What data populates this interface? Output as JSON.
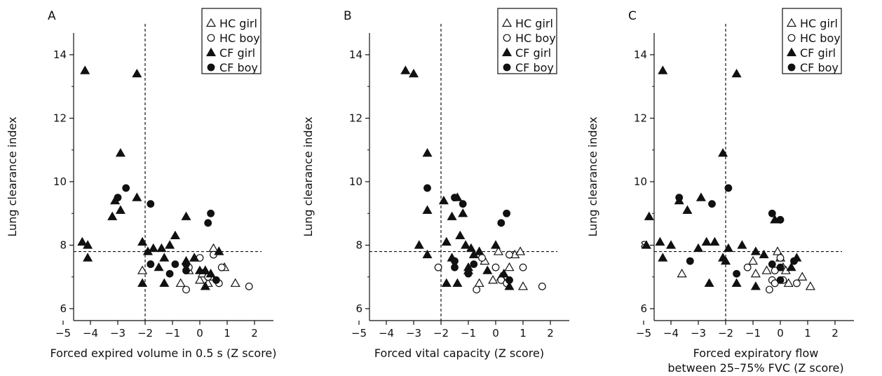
{
  "chart_data": [
    {
      "type": "scatter",
      "panel_label": "A",
      "xlabel": "Forced expired volume in 0.5 s (Z score)",
      "ylabel": "Lung clearance index",
      "xlim": [
        -5.5,
        2.5
      ],
      "ylim": [
        5.6,
        14.6
      ],
      "xticks": [
        -5,
        -4,
        -3,
        -2,
        -1,
        0,
        1,
        2
      ],
      "yticks": [
        6,
        8,
        10,
        12,
        14
      ],
      "reference_lines": {
        "x": -2,
        "y": 7.8
      },
      "grid": false,
      "legend_position": "top-right",
      "series": [
        {
          "name": "HC girl",
          "marker": "triangle-open",
          "points": [
            [
              -2.1,
              7.2
            ],
            [
              -0.7,
              6.8
            ],
            [
              -0.4,
              7.2
            ],
            [
              -0.2,
              7.6
            ],
            [
              0.0,
              6.9
            ],
            [
              0.1,
              7.1
            ],
            [
              0.2,
              7.2
            ],
            [
              0.3,
              6.8
            ],
            [
              0.4,
              7.0
            ],
            [
              0.5,
              7.9
            ],
            [
              0.7,
              7.8
            ],
            [
              0.9,
              7.3
            ],
            [
              1.3,
              6.8
            ]
          ]
        },
        {
          "name": "HC boy",
          "marker": "circle-open",
          "points": [
            [
              -1.8,
              7.4
            ],
            [
              -0.5,
              6.6
            ],
            [
              -0.4,
              7.3
            ],
            [
              0.0,
              7.6
            ],
            [
              0.3,
              7.0
            ],
            [
              0.5,
              7.7
            ],
            [
              0.7,
              6.8
            ],
            [
              0.8,
              7.3
            ],
            [
              1.8,
              6.7
            ]
          ]
        },
        {
          "name": "CF girl",
          "marker": "triangle-filled",
          "points": [
            [
              -4.2,
              13.5
            ],
            [
              -2.3,
              13.4
            ],
            [
              -2.9,
              10.9
            ],
            [
              -3.1,
              9.4
            ],
            [
              -2.9,
              9.1
            ],
            [
              -3.2,
              8.9
            ],
            [
              -2.3,
              9.5
            ],
            [
              -4.3,
              8.1
            ],
            [
              -4.1,
              8.0
            ],
            [
              -4.1,
              7.6
            ],
            [
              -2.1,
              8.1
            ],
            [
              -1.7,
              7.9
            ],
            [
              -1.4,
              7.9
            ],
            [
              -1.1,
              8.0
            ],
            [
              -0.9,
              8.3
            ],
            [
              -1.3,
              7.6
            ],
            [
              -1.9,
              7.8
            ],
            [
              -1.5,
              7.3
            ],
            [
              -1.3,
              6.8
            ],
            [
              -2.1,
              6.8
            ],
            [
              -0.5,
              8.9
            ],
            [
              -0.5,
              7.5
            ],
            [
              -0.2,
              7.6
            ],
            [
              0.0,
              7.2
            ],
            [
              0.2,
              7.2
            ],
            [
              0.2,
              6.7
            ],
            [
              0.4,
              7.1
            ],
            [
              0.7,
              7.8
            ]
          ]
        },
        {
          "name": "CF boy",
          "marker": "circle-filled",
          "points": [
            [
              -2.7,
              9.8
            ],
            [
              -3.0,
              9.5
            ],
            [
              -1.8,
              9.3
            ],
            [
              -1.8,
              7.4
            ],
            [
              -1.1,
              7.1
            ],
            [
              -0.9,
              7.4
            ],
            [
              -0.5,
              7.4
            ],
            [
              -0.5,
              7.2
            ],
            [
              0.3,
              8.7
            ],
            [
              0.4,
              9.0
            ],
            [
              0.6,
              6.9
            ]
          ]
        }
      ]
    },
    {
      "type": "scatter",
      "panel_label": "B",
      "xlabel": "Forced vital capacity (Z score)",
      "ylabel": "Lung clearance index",
      "xlim": [
        -5.5,
        2.5
      ],
      "ylim": [
        5.6,
        14.6
      ],
      "xticks": [
        -5,
        -4,
        -3,
        -2,
        -1,
        0,
        1,
        2
      ],
      "yticks": [
        6,
        8,
        10,
        12,
        14
      ],
      "reference_lines": {
        "x": -2,
        "y": 7.8
      },
      "grid": false,
      "legend_position": "top-right",
      "series": [
        {
          "name": "HC girl",
          "marker": "triangle-open",
          "points": [
            [
              -1.0,
              7.2
            ],
            [
              -0.6,
              6.8
            ],
            [
              -0.4,
              7.5
            ],
            [
              -0.1,
              6.9
            ],
            [
              0.1,
              7.8
            ],
            [
              0.2,
              7.0
            ],
            [
              0.5,
              7.3
            ],
            [
              0.7,
              7.7
            ],
            [
              0.9,
              7.8
            ],
            [
              1.0,
              6.7
            ]
          ]
        },
        {
          "name": "HC boy",
          "marker": "circle-open",
          "points": [
            [
              -2.1,
              7.3
            ],
            [
              -0.7,
              6.6
            ],
            [
              -0.5,
              7.6
            ],
            [
              0.0,
              7.3
            ],
            [
              0.2,
              6.9
            ],
            [
              0.4,
              6.8
            ],
            [
              0.5,
              7.7
            ],
            [
              1.0,
              7.3
            ],
            [
              1.7,
              6.7
            ]
          ]
        },
        {
          "name": "CF girl",
          "marker": "triangle-filled",
          "points": [
            [
              -3.3,
              13.5
            ],
            [
              -3.0,
              13.4
            ],
            [
              -2.5,
              10.9
            ],
            [
              -1.9,
              9.4
            ],
            [
              -2.5,
              9.1
            ],
            [
              -1.4,
              9.5
            ],
            [
              -1.2,
              9.0
            ],
            [
              -1.6,
              8.9
            ],
            [
              -2.8,
              8.0
            ],
            [
              -2.5,
              7.7
            ],
            [
              -1.8,
              8.1
            ],
            [
              -1.3,
              8.3
            ],
            [
              -1.1,
              8.0
            ],
            [
              -0.9,
              7.9
            ],
            [
              -0.6,
              7.8
            ],
            [
              -1.6,
              7.6
            ],
            [
              -1.0,
              7.3
            ],
            [
              -1.8,
              6.8
            ],
            [
              -1.4,
              6.8
            ],
            [
              -0.8,
              7.7
            ],
            [
              -0.3,
              7.2
            ],
            [
              0.3,
              7.1
            ],
            [
              0.5,
              6.7
            ],
            [
              0.0,
              8.0
            ]
          ]
        },
        {
          "name": "CF boy",
          "marker": "circle-filled",
          "points": [
            [
              -2.5,
              9.8
            ],
            [
              -1.5,
              9.5
            ],
            [
              -1.2,
              9.3
            ],
            [
              -1.5,
              7.5
            ],
            [
              -1.5,
              7.3
            ],
            [
              -1.0,
              7.1
            ],
            [
              -0.8,
              7.4
            ],
            [
              0.2,
              8.7
            ],
            [
              0.4,
              9.0
            ],
            [
              0.5,
              6.9
            ]
          ]
        }
      ]
    },
    {
      "type": "scatter",
      "panel_label": "C",
      "xlabel": "Forced expiratory flow between 25–75% FVC (Z score)",
      "ylabel": "Lung clearance index",
      "xlim": [
        -5.5,
        2.5
      ],
      "ylim": [
        5.6,
        14.6
      ],
      "xticks": [
        -5,
        -4,
        -3,
        -2,
        -1,
        0,
        1,
        2
      ],
      "yticks": [
        6,
        8,
        10,
        12,
        14
      ],
      "reference_lines": {
        "x": -2,
        "y": 7.8
      },
      "grid": false,
      "legend_position": "top-right",
      "series": [
        {
          "name": "HC girl",
          "marker": "triangle-open",
          "points": [
            [
              -3.6,
              7.1
            ],
            [
              -1.0,
              7.5
            ],
            [
              -0.9,
              7.1
            ],
            [
              -0.5,
              7.2
            ],
            [
              -0.1,
              7.8
            ],
            [
              0.0,
              7.6
            ],
            [
              0.1,
              7.3
            ],
            [
              0.2,
              7.2
            ],
            [
              0.3,
              6.8
            ],
            [
              0.8,
              7.0
            ],
            [
              1.1,
              6.7
            ]
          ]
        },
        {
          "name": "HC boy",
          "marker": "circle-open",
          "points": [
            [
              -1.2,
              7.3
            ],
            [
              -0.3,
              6.9
            ],
            [
              -0.4,
              6.6
            ],
            [
              -0.2,
              7.2
            ],
            [
              0.0,
              7.6
            ],
            [
              0.1,
              6.9
            ],
            [
              0.6,
              6.8
            ],
            [
              -0.2,
              6.8
            ]
          ]
        },
        {
          "name": "CF girl",
          "marker": "triangle-filled",
          "points": [
            [
              -4.3,
              13.5
            ],
            [
              -1.6,
              13.4
            ],
            [
              -2.1,
              10.9
            ],
            [
              -3.7,
              9.4
            ],
            [
              -3.4,
              9.1
            ],
            [
              -2.9,
              9.5
            ],
            [
              -4.8,
              8.9
            ],
            [
              -4.9,
              8.0
            ],
            [
              -4.4,
              8.1
            ],
            [
              -4.0,
              8.0
            ],
            [
              -4.3,
              7.6
            ],
            [
              -3.0,
              7.9
            ],
            [
              -2.7,
              8.1
            ],
            [
              -2.4,
              8.1
            ],
            [
              -2.0,
              7.5
            ],
            [
              -2.1,
              7.6
            ],
            [
              -1.9,
              7.9
            ],
            [
              -1.4,
              8.0
            ],
            [
              -0.9,
              7.8
            ],
            [
              -0.6,
              7.7
            ],
            [
              -0.9,
              6.7
            ],
            [
              -1.6,
              6.8
            ],
            [
              -2.6,
              6.8
            ],
            [
              -0.2,
              8.8
            ],
            [
              0.4,
              7.3
            ],
            [
              0.6,
              7.6
            ]
          ]
        },
        {
          "name": "CF boy",
          "marker": "circle-filled",
          "points": [
            [
              -3.7,
              9.5
            ],
            [
              -3.3,
              7.5
            ],
            [
              -2.5,
              9.3
            ],
            [
              -1.9,
              9.8
            ],
            [
              -1.6,
              7.1
            ],
            [
              -0.3,
              9.0
            ],
            [
              0.0,
              8.8
            ],
            [
              -0.3,
              7.4
            ],
            [
              0.0,
              7.3
            ],
            [
              0.0,
              6.9
            ],
            [
              0.5,
              7.5
            ]
          ]
        }
      ]
    }
  ]
}
